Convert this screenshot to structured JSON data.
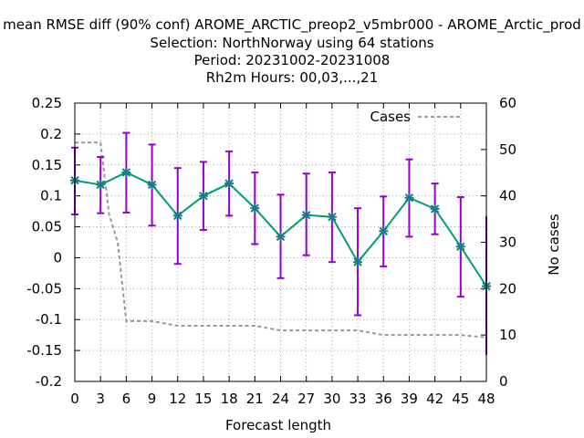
{
  "chart_data": {
    "type": "line",
    "title_lines": [
      "mean RMSE diff (90% conf) AROME_ARCTIC_preop2_v5mbr000 - AROME_Arctic_prod",
      "Selection: NorthNorway using    64 stations",
      "Period: 20231002-20231008",
      "Rh2m   Hours:  00,03,...,21"
    ],
    "xlabel": "Forecast length",
    "y2label": "No cases",
    "x": [
      0,
      3,
      6,
      9,
      12,
      15,
      18,
      21,
      24,
      27,
      30,
      33,
      36,
      39,
      42,
      45,
      48
    ],
    "xlim": [
      0,
      48
    ],
    "ylim": [
      -0.2,
      0.25
    ],
    "y2lim": [
      0,
      60
    ],
    "x_ticks": [
      "0",
      "3",
      "6",
      "9",
      "12",
      "15",
      "18",
      "21",
      "24",
      "27",
      "30",
      "33",
      "36",
      "39",
      "42",
      "45",
      "48"
    ],
    "y_ticks": [
      "0.25",
      "0.2",
      "0.15",
      "0.1",
      "0.05",
      "0",
      "-0.05",
      "-0.1",
      "-0.15",
      "-0.2"
    ],
    "y2_ticks": [
      "60",
      "50",
      "40",
      "30",
      "20",
      "10",
      "0"
    ],
    "grid": true,
    "legend_position": "top-right",
    "series": [
      {
        "kind": "rmse_diff",
        "color": "#009e73",
        "marker_color": "#1b7a8a",
        "values": [
          0.125,
          0.118,
          0.138,
          0.118,
          0.068,
          0.1,
          0.12,
          0.08,
          0.034,
          0.069,
          0.066,
          -0.007,
          0.043,
          0.097,
          0.079,
          0.018,
          -0.046
        ]
      },
      {
        "kind": "confidence_interval",
        "color": "#9400d3",
        "lower": [
          0.07,
          0.072,
          0.073,
          0.052,
          -0.01,
          0.045,
          0.068,
          0.022,
          -0.033,
          0.004,
          -0.007,
          -0.093,
          -0.014,
          0.034,
          0.038,
          -0.063,
          -0.157
        ],
        "upper": [
          0.178,
          0.163,
          0.202,
          0.183,
          0.145,
          0.155,
          0.172,
          0.138,
          0.102,
          0.136,
          0.138,
          0.08,
          0.099,
          0.159,
          0.12,
          0.098,
          0.067
        ]
      },
      {
        "name": "Cases",
        "axis": "y2",
        "color": "#999999",
        "style": "dashed",
        "x": [
          0,
          3,
          4,
          5,
          6,
          9,
          12,
          18,
          21,
          24,
          30,
          33,
          36,
          45,
          48
        ],
        "values": [
          51.5,
          51.5,
          36,
          30,
          13,
          13,
          12,
          12,
          12,
          11,
          11,
          11,
          10,
          10,
          9.5
        ]
      }
    ]
  }
}
